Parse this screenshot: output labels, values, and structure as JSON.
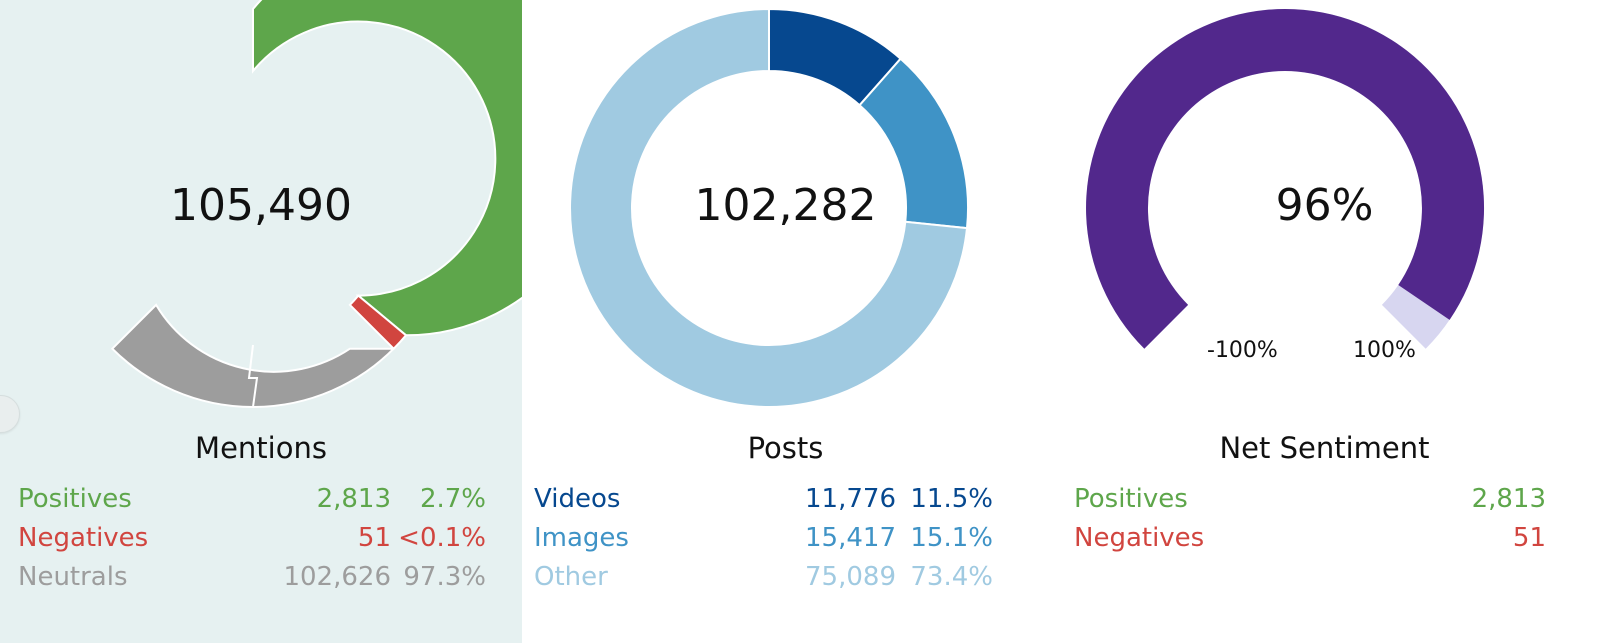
{
  "colors": {
    "positive": "#5ea64b",
    "negative": "#d1453f",
    "neutral": "#9d9d9d",
    "videos": "#06488f",
    "images": "#3f93c6",
    "other": "#a0cae1",
    "sentiment": "#52288c",
    "sentiment_rest": "#d7d6f0"
  },
  "mentions": {
    "total": "105,490",
    "title": "Mentions",
    "rows": [
      {
        "label": "Positives",
        "count": "2,813",
        "percent": "2.7%"
      },
      {
        "label": "Negatives",
        "count": "51",
        "percent": "<0.1%"
      },
      {
        "label": "Neutrals",
        "count": "102,626",
        "percent": "97.3%"
      }
    ]
  },
  "posts": {
    "total": "102,282",
    "title": "Posts",
    "rows": [
      {
        "label": "Videos",
        "count": "11,776",
        "percent": "11.5%"
      },
      {
        "label": "Images",
        "count": "15,417",
        "percent": "15.1%"
      },
      {
        "label": "Other",
        "count": "75,089",
        "percent": "73.4%"
      }
    ]
  },
  "sentiment": {
    "value": "96%",
    "value_fraction": 0.96,
    "title": "Net Sentiment",
    "min_label": "-100%",
    "max_label": "100%",
    "rows": [
      {
        "label": "Positives",
        "count": "2,813"
      },
      {
        "label": "Negatives",
        "count": "51"
      }
    ]
  }
}
